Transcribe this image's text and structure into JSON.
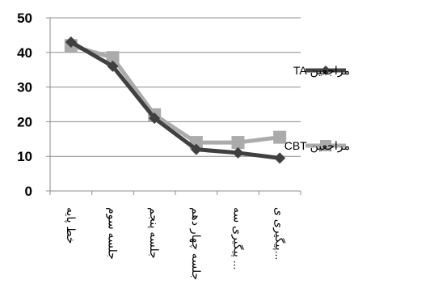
{
  "chart_data": {
    "type": "line",
    "title": "",
    "xlabel": "",
    "ylabel": "",
    "categories": [
      "خط پایه",
      "جلسه سوم",
      "جلسه پنجم",
      "جلسه چهاردهم",
      "پیگیری سه ماهه",
      "پیگیری ..."
    ],
    "category_labels": [
      "خط پایه",
      "جلسه سوم",
      "جلسه پنجم",
      "جلسه چهار دهم",
      "پیگیری سه ...",
      "پیگیری ی..."
    ],
    "ylim": [
      0,
      50
    ],
    "yticks": [
      "0",
      "10",
      "20",
      "30",
      "40",
      "50"
    ],
    "grid": true,
    "legend_position": "right",
    "series": [
      {
        "name": "مراجعین TA",
        "values": [
          43,
          36,
          21,
          12,
          11,
          9.5
        ],
        "color": "#404040",
        "marker": "diamond"
      },
      {
        "name": "مراجعین CBT",
        "values": [
          42,
          38.5,
          22,
          14,
          14,
          15.5
        ],
        "color": "#ababab",
        "marker": "square"
      }
    ]
  }
}
